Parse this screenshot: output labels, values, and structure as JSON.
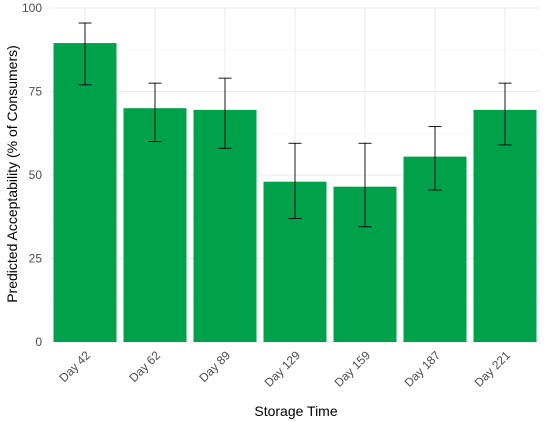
{
  "chart_data": {
    "type": "bar",
    "categories": [
      "Day 42",
      "Day 62",
      "Day 89",
      "Day 129",
      "Day 159",
      "Day 187",
      "Day 221"
    ],
    "values": [
      89.5,
      70,
      69.5,
      48,
      46.5,
      55.5,
      69.5
    ],
    "error_low": [
      77,
      60,
      58,
      37,
      34.5,
      45.5,
      59
    ],
    "error_high": [
      95.5,
      77.5,
      79,
      59.5,
      59.5,
      64.5,
      77.5
    ],
    "xlabel": "Storage Time",
    "ylabel": "Predicted Acceptability (% of Consumers)",
    "ylim": [
      0,
      100
    ],
    "yticks": [
      0,
      25,
      50,
      75,
      100
    ],
    "bar_color": "#00a14b",
    "grid": true
  }
}
